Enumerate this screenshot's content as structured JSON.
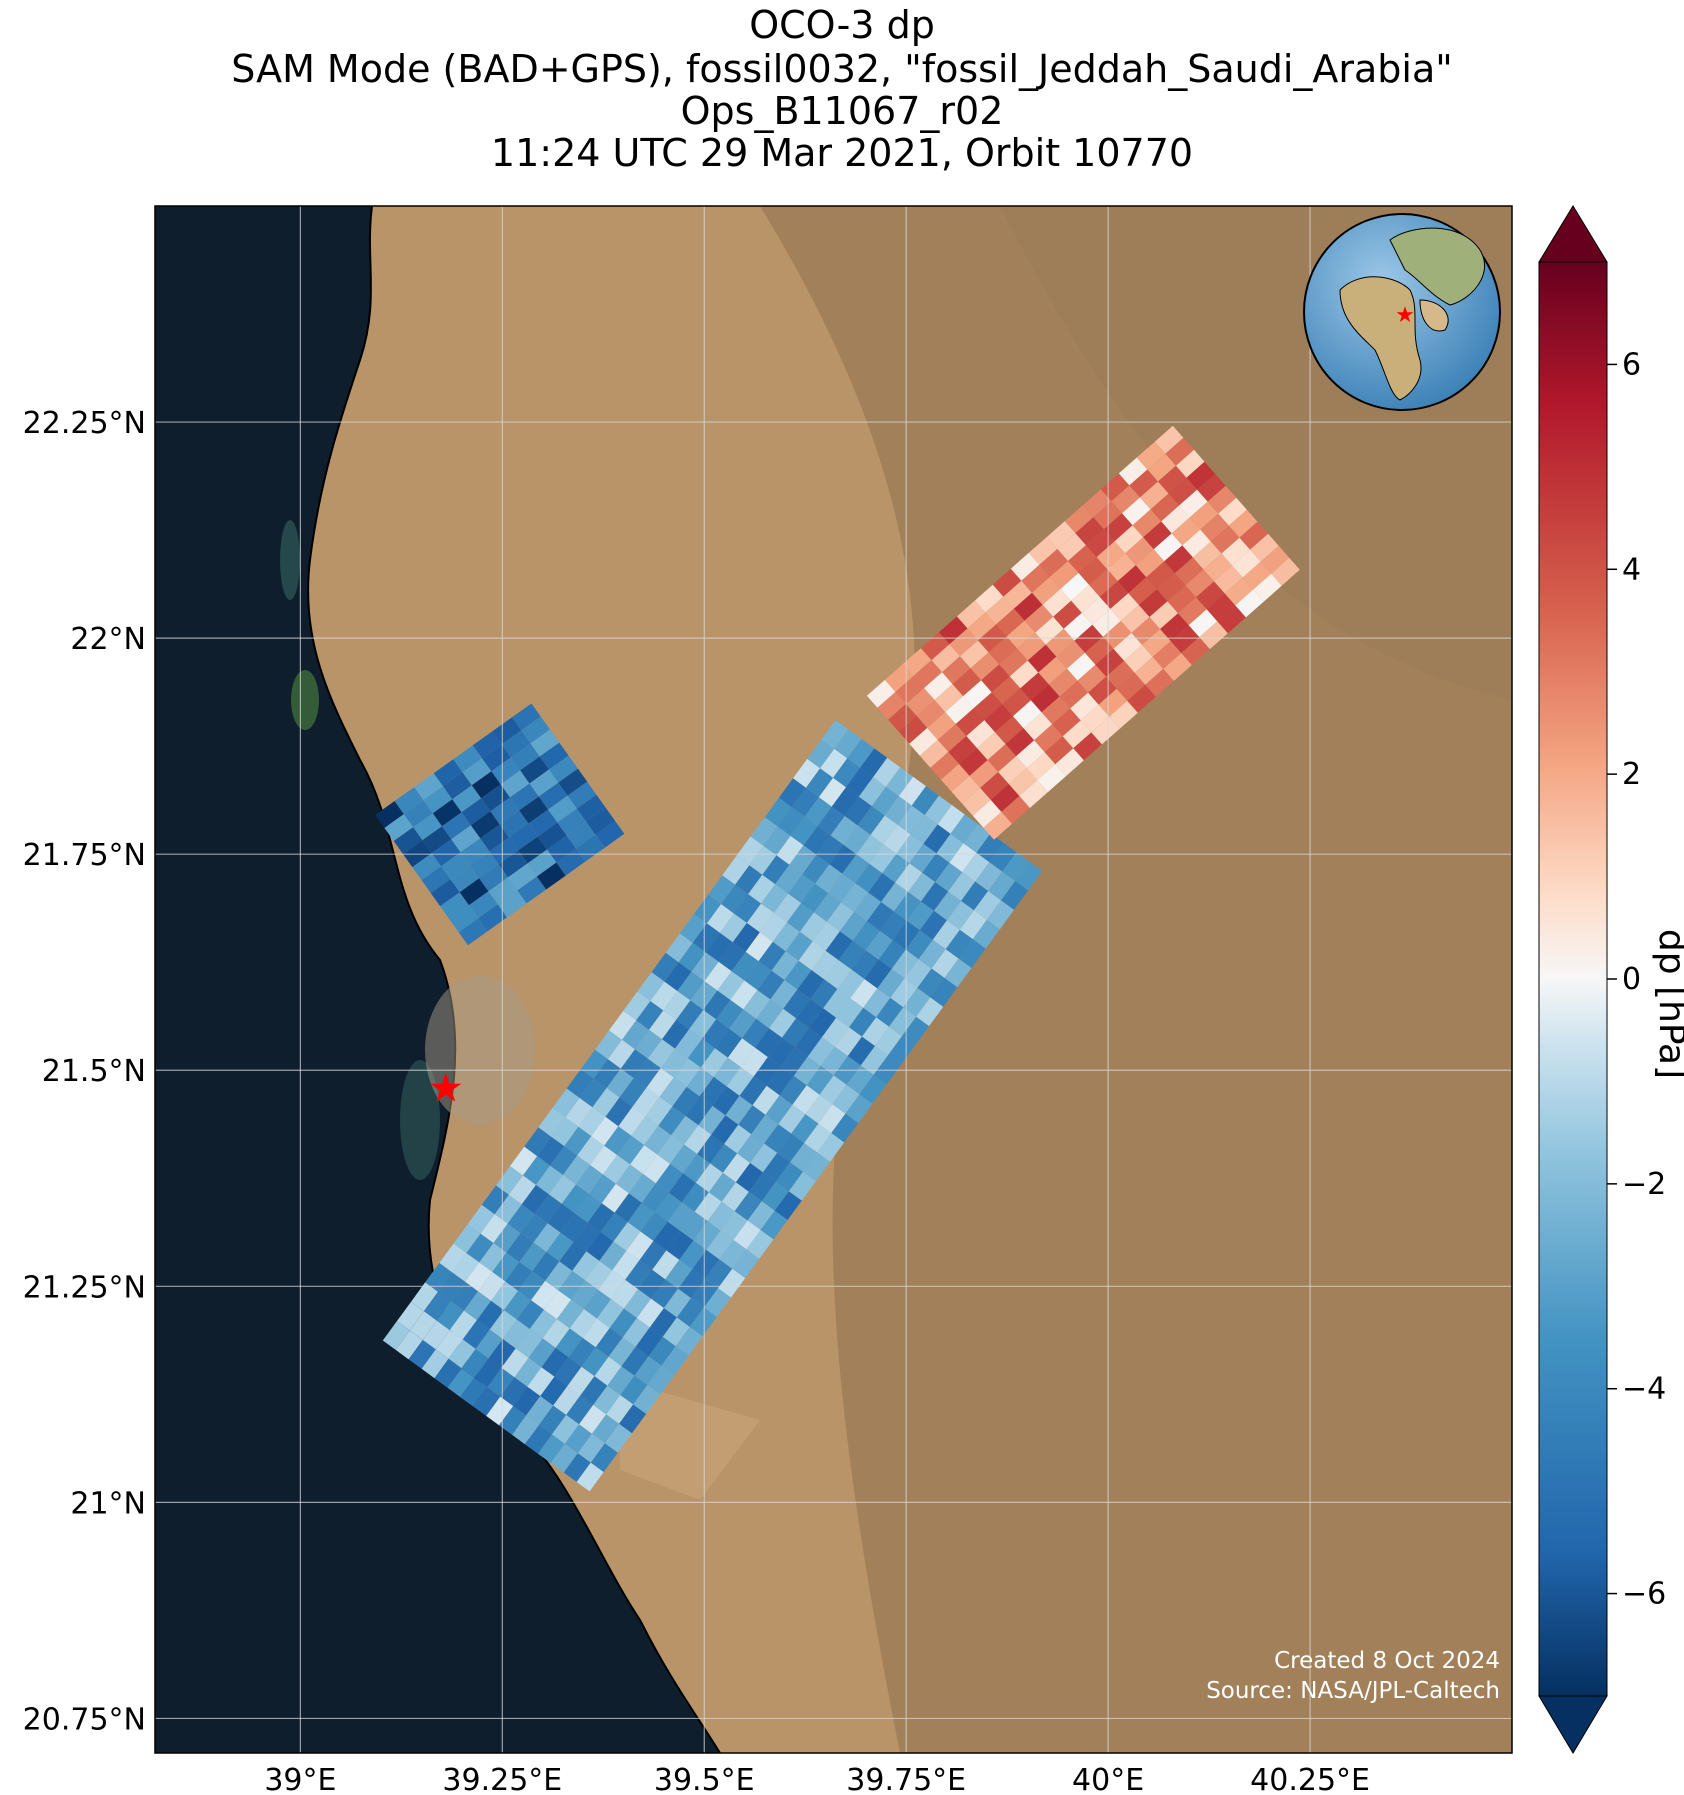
{
  "title": {
    "line1": "OCO-3 dp",
    "line2": "SAM Mode (BAD+GPS), fossil0032, \"fossil_Jeddah_Saudi_Arabia\"",
    "line3": "Ops_B11067_r02",
    "line4": "11:24 UTC 29 Mar 2021, Orbit 10770"
  },
  "axes": {
    "lon_ticks": [
      {
        "value": 39.0,
        "label": "39°E"
      },
      {
        "value": 39.25,
        "label": "39.25°E"
      },
      {
        "value": 39.5,
        "label": "39.5°E"
      },
      {
        "value": 39.75,
        "label": "39.75°E"
      },
      {
        "value": 40.0,
        "label": "40°E"
      },
      {
        "value": 40.25,
        "label": "40.25°E"
      }
    ],
    "lat_ticks": [
      {
        "value": 22.25,
        "label": "22.25°N"
      },
      {
        "value": 22.0,
        "label": "22°N"
      },
      {
        "value": 21.75,
        "label": "21.75°N"
      },
      {
        "value": 21.5,
        "label": "21.5°N"
      },
      {
        "value": 21.25,
        "label": "21.25°N"
      },
      {
        "value": 21.0,
        "label": "21°N"
      },
      {
        "value": 20.75,
        "label": "20.75°N"
      }
    ],
    "lon_range": [
      38.82,
      40.5
    ],
    "lat_range": [
      20.71,
      22.5
    ],
    "grid": true
  },
  "colorbar": {
    "label": "dp [hPa]",
    "range": [
      -7,
      7
    ],
    "ticks": [
      {
        "value": 6,
        "label": "6"
      },
      {
        "value": 4,
        "label": "4"
      },
      {
        "value": 2,
        "label": "2"
      },
      {
        "value": 0,
        "label": "0"
      },
      {
        "value": -2,
        "label": "−2"
      },
      {
        "value": -4,
        "label": "−4"
      },
      {
        "value": -6,
        "label": "−6"
      }
    ],
    "colormap": "RdBu_r",
    "extend": "both"
  },
  "target_marker": {
    "name": "fossil_Jeddah_Saudi_Arabia",
    "lon": 39.18,
    "lat": 21.48,
    "color": "#ff0000",
    "icon": "star-icon"
  },
  "inset_globe": {
    "icon": "globe-icon",
    "marker_color": "#ff0000"
  },
  "credit": {
    "line1": "Created 8 Oct 2024",
    "line2": "Source: NASA/JPL-Caltech"
  },
  "chart_data": {
    "type": "heatmap",
    "title": "OCO-3 dp",
    "variable": "dp",
    "units": "hPa",
    "swaths": [
      {
        "lon_start": 39.15,
        "lat_start": 21.72,
        "lon_end": 39.36,
        "lat_end": 21.86,
        "mean_dp": -5.0
      },
      {
        "lon_start": 39.23,
        "lat_start": 21.1,
        "lon_end": 39.8,
        "lat_end": 21.83,
        "mean_dp": -3.0
      },
      {
        "lon_start": 39.78,
        "lat_start": 21.85,
        "lon_end": 40.18,
        "lat_end": 22.18,
        "mean_dp": 2.5
      }
    ]
  }
}
